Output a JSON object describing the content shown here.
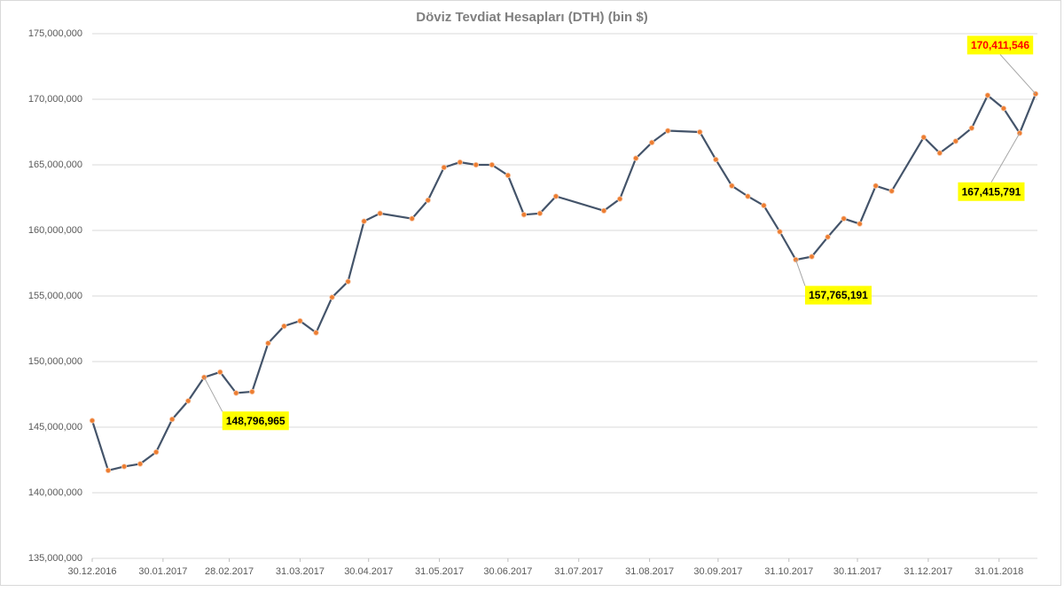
{
  "chart_data": {
    "type": "line",
    "title": "Döviz Tevdiat Hesapları (DTH) (bin $)",
    "x": [
      "30.12.2016",
      "06.01.2017",
      "13.01.2017",
      "20.01.2017",
      "27.01.2017",
      "03.02.2017",
      "10.02.2017",
      "17.02.2017",
      "24.02.2017",
      "03.03.2017",
      "10.03.2017",
      "17.03.2017",
      "24.03.2017",
      "31.03.2017",
      "07.04.2017",
      "14.04.2017",
      "21.04.2017",
      "28.04.2017",
      "05.05.2017",
      "19.05.2017",
      "26.05.2017",
      "02.06.2017",
      "09.06.2017",
      "16.06.2017",
      "23.06.2017",
      "30.06.2017",
      "07.07.2017",
      "14.07.2017",
      "21.07.2017",
      "11.08.2017",
      "18.08.2017",
      "25.08.2017",
      "01.09.2017",
      "08.09.2017",
      "22.09.2017",
      "29.09.2017",
      "06.10.2017",
      "13.10.2017",
      "20.10.2017",
      "27.10.2017",
      "03.11.2017",
      "10.11.2017",
      "17.11.2017",
      "24.11.2017",
      "01.12.2017",
      "08.12.2017",
      "15.12.2017",
      "29.12.2017",
      "05.01.2018",
      "12.01.2018",
      "19.01.2018",
      "26.01.2018",
      "02.02.2018",
      "09.02.2018",
      "16.02.2018"
    ],
    "values": [
      145500000,
      141700000,
      142000000,
      142200000,
      143100000,
      145600000,
      147000000,
      148796965,
      149200000,
      147600000,
      147700000,
      151400000,
      152700000,
      153100000,
      152200000,
      154900000,
      156100000,
      160700000,
      161300000,
      160900000,
      162300000,
      164800000,
      165200000,
      165000000,
      165000000,
      164200000,
      161200000,
      161300000,
      162600000,
      161500000,
      162400000,
      165500000,
      166700000,
      167600000,
      167500000,
      165400000,
      163400000,
      162600000,
      161900000,
      159900000,
      157765191,
      158000000,
      159500000,
      160900000,
      160500000,
      163400000,
      163000000,
      167100000,
      165900000,
      166800000,
      167800000,
      170300000,
      169300000,
      167415791,
      170411546
    ],
    "value_labels": [
      null,
      null,
      null,
      null,
      null,
      null,
      null,
      "148,796,965",
      null,
      null,
      null,
      null,
      null,
      null,
      null,
      null,
      null,
      null,
      null,
      null,
      null,
      null,
      null,
      null,
      null,
      null,
      null,
      null,
      null,
      null,
      null,
      null,
      null,
      null,
      null,
      null,
      null,
      null,
      null,
      null,
      "157,765,191",
      null,
      null,
      null,
      null,
      null,
      null,
      null,
      null,
      null,
      null,
      null,
      null,
      "167,415,791",
      "170,411,546"
    ],
    "color": "#44546a",
    "marker_color": "#ed7d31",
    "xlim": [
      "30.12.2016",
      "16.02.2018"
    ],
    "xticks": [
      "30.12.2016",
      "30.01.2017",
      "28.02.2017",
      "31.03.2017",
      "30.04.2017",
      "31.05.2017",
      "30.06.2017",
      "31.07.2017",
      "31.08.2017",
      "30.09.2017",
      "31.10.2017",
      "30.11.2017",
      "31.12.2017",
      "31.01.2018"
    ],
    "ylim": [
      135000000,
      175000000
    ],
    "yticks": [
      {
        "value": 135000000,
        "label": "135,000,000"
      },
      {
        "value": 140000000,
        "label": "140,000,000"
      },
      {
        "value": 145000000,
        "label": "145,000,000"
      },
      {
        "value": 150000000,
        "label": "150,000,000"
      },
      {
        "value": 155000000,
        "label": "155,000,000"
      },
      {
        "value": 160000000,
        "label": "160,000,000"
      },
      {
        "value": 165000000,
        "label": "165,000,000"
      },
      {
        "value": 170000000,
        "label": "170,000,000"
      },
      {
        "value": 175000000,
        "label": "175,000,000"
      }
    ],
    "grid": true
  }
}
